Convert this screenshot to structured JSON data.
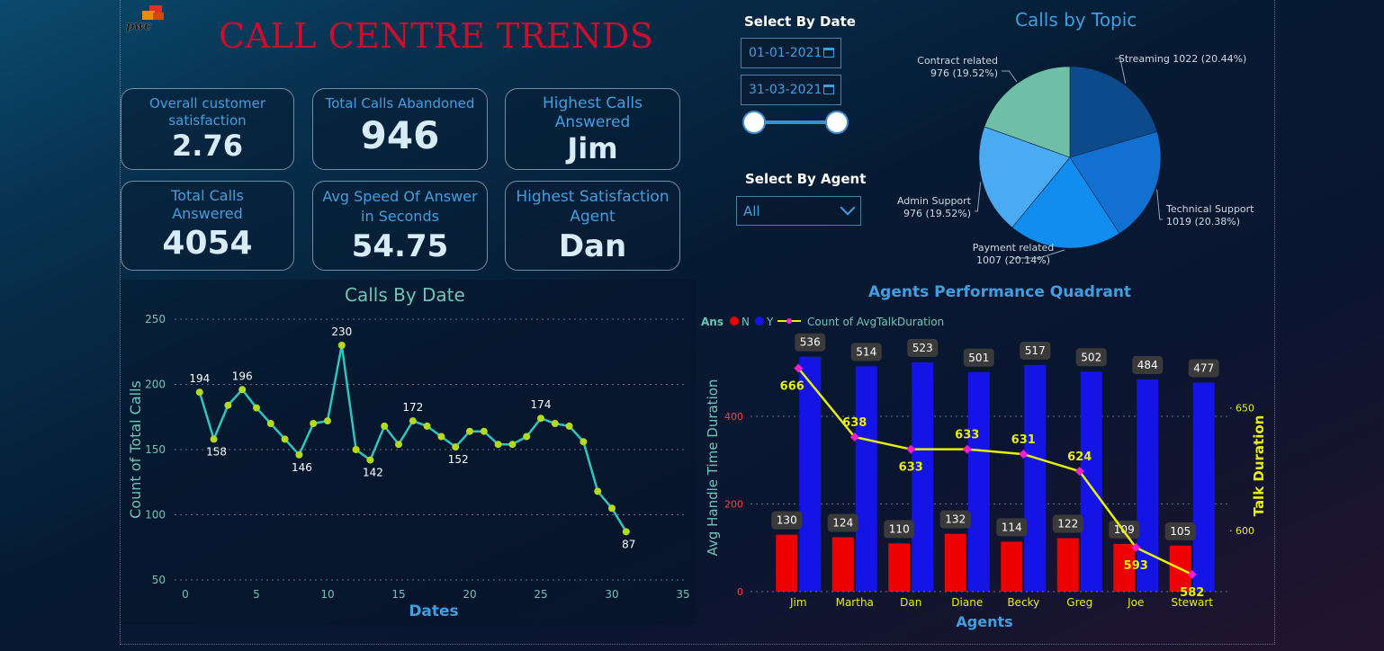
{
  "logo_text": "pwc",
  "title": "CALL CENTRE TRENDS",
  "kpis": [
    {
      "label": "Overall customer satisfaction",
      "value": "2.76"
    },
    {
      "label": "Total Calls Abandoned",
      "value": "946"
    },
    {
      "label": "Highest Calls Answered",
      "value": "Jim"
    },
    {
      "label": "Total Calls Answered",
      "value": "4054"
    },
    {
      "label": "Avg Speed Of Answer in Seconds",
      "value": "54.75"
    },
    {
      "label": "Highest Satisfaction Agent",
      "value": "Dan"
    }
  ],
  "filters": {
    "date_label": "Select By Date",
    "start_date": "01-01-2021",
    "end_date": "31-03-2021",
    "agent_label": "Select By Agent",
    "agent_value": "All"
  },
  "colors": {
    "line": "#2ec4c0",
    "point": "#b5d91c",
    "bar_n": "#ee0000",
    "bar_y": "#1414e6",
    "talk_line": "#e6f000",
    "talk_marker": "#ff1ec8",
    "title_red": "#c8102e",
    "accent": "#3f9fe0"
  },
  "chart_data": [
    {
      "type": "line",
      "title": "Calls By Date",
      "xlabel": "Dates",
      "ylabel": "Count of Total Calls",
      "x_ticks": [
        0,
        5,
        10,
        15,
        20,
        25,
        30,
        35
      ],
      "y_ticks": [
        50,
        100,
        150,
        200,
        250
      ],
      "xlim": [
        0,
        35
      ],
      "ylim": [
        50,
        250
      ],
      "grid": true,
      "x": [
        1,
        2,
        3,
        4,
        5,
        6,
        7,
        8,
        9,
        10,
        11,
        12,
        13,
        14,
        15,
        16,
        17,
        18,
        19,
        20,
        21,
        22,
        23,
        24,
        25,
        26,
        27,
        28,
        29,
        30,
        31
      ],
      "y": [
        194,
        158,
        184,
        196,
        182,
        170,
        158,
        146,
        170,
        172,
        230,
        150,
        142,
        168,
        154,
        172,
        168,
        160,
        152,
        164,
        164,
        154,
        154,
        160,
        174,
        170,
        168,
        156,
        118,
        105,
        87
      ],
      "labeled_points": [
        {
          "x": 1,
          "y": 194,
          "label": "194",
          "pos": "above"
        },
        {
          "x": 2,
          "y": 158,
          "label": "158",
          "pos": "below"
        },
        {
          "x": 4,
          "y": 196,
          "label": "196",
          "pos": "above"
        },
        {
          "x": 8,
          "y": 146,
          "label": "146",
          "pos": "below"
        },
        {
          "x": 11,
          "y": 230,
          "label": "230",
          "pos": "above"
        },
        {
          "x": 13,
          "y": 142,
          "label": "142",
          "pos": "below"
        },
        {
          "x": 16,
          "y": 172,
          "label": "172",
          "pos": "above"
        },
        {
          "x": 19,
          "y": 152,
          "label": "152",
          "pos": "below"
        },
        {
          "x": 25,
          "y": 174,
          "label": "174",
          "pos": "above"
        },
        {
          "x": 31,
          "y": 87,
          "label": "87",
          "pos": "below"
        }
      ]
    },
    {
      "type": "pie",
      "title": "Calls by Topic",
      "slices": [
        {
          "label": "Streaming",
          "value": 1022,
          "pct": "20.44%",
          "color": "#0d4a8c"
        },
        {
          "label": "Technical Support",
          "value": 1019,
          "pct": "20.38%",
          "color": "#1271d0"
        },
        {
          "label": "Payment related",
          "value": 1007,
          "pct": "20.14%",
          "color": "#118df0"
        },
        {
          "label": "Admin Support",
          "value": 976,
          "pct": "19.52%",
          "color": "#4aaaf2"
        },
        {
          "label": "Contract related",
          "value": 976,
          "pct": "19.52%",
          "color": "#6fbfa6"
        }
      ]
    },
    {
      "type": "bar",
      "title": "Agents Performance Quadrant",
      "xlabel": "Agents",
      "ylabel": "Avg Handle Time Duration",
      "y2label": "Talk Duration",
      "legend_title": "Ans",
      "categories": [
        "Jim",
        "Martha",
        "Dan",
        "Diane",
        "Becky",
        "Greg",
        "Joe",
        "Stewart"
      ],
      "ylim": [
        0,
        560
      ],
      "y_ticks": [
        0,
        200,
        400
      ],
      "y2lim": [
        575,
        675
      ],
      "y2_ticks": [
        600,
        650
      ],
      "series": [
        {
          "name": "N",
          "values": [
            130,
            124,
            110,
            132,
            114,
            122,
            109,
            105
          ]
        },
        {
          "name": "Y",
          "values": [
            536,
            514,
            523,
            501,
            517,
            502,
            484,
            477
          ]
        },
        {
          "name": "Count of AvgTalkDuration",
          "values": [
            666,
            638,
            633,
            633,
            631,
            624,
            593,
            582
          ],
          "axis": "secondary"
        }
      ]
    }
  ]
}
